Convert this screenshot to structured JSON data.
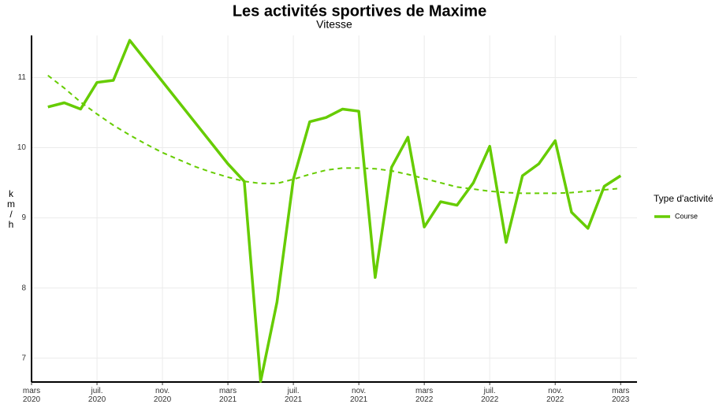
{
  "chart_data": {
    "type": "line",
    "title": "Les activités sportives de Maxime",
    "subtitle": "Vitesse",
    "y_label": "km/h",
    "legend_title": "Type d'activité",
    "legend_position": "right",
    "grid": true,
    "x": [
      "2020-04",
      "2020-05",
      "2020-06",
      "2020-07",
      "2020-08",
      "2020-09",
      "2021-03",
      "2021-04",
      "2021-05",
      "2021-06",
      "2021-07",
      "2021-08",
      "2021-09",
      "2021-10",
      "2021-11",
      "2021-12",
      "2022-01",
      "2022-02",
      "2022-03",
      "2022-04",
      "2022-05",
      "2022-06",
      "2022-07",
      "2022-08",
      "2022-09",
      "2022-10",
      "2022-11",
      "2022-12",
      "2023-01",
      "2023-02",
      "2023-03"
    ],
    "series": [
      {
        "name": "Course",
        "color": "#66cc00",
        "values": [
          10.58,
          10.64,
          10.55,
          10.93,
          10.96,
          11.53,
          9.77,
          9.52,
          6.67,
          7.8,
          9.55,
          10.37,
          10.43,
          10.55,
          10.52,
          8.15,
          9.72,
          10.15,
          8.87,
          9.23,
          9.18,
          9.5,
          10.02,
          8.65,
          9.6,
          9.77,
          10.1,
          9.08,
          8.85,
          9.45,
          9.6
        ]
      }
    ],
    "trend": {
      "color": "#66cc00",
      "x": [
        "2020-04",
        "2020-05",
        "2020-06",
        "2020-07",
        "2020-08",
        "2020-09",
        "2020-10",
        "2020-11",
        "2020-12",
        "2021-01",
        "2021-02",
        "2021-03",
        "2021-04",
        "2021-05",
        "2021-06",
        "2021-07",
        "2021-08",
        "2021-09",
        "2021-10",
        "2021-11",
        "2021-12",
        "2022-01",
        "2022-02",
        "2022-03",
        "2022-04",
        "2022-05",
        "2022-06",
        "2022-07",
        "2022-08",
        "2022-09",
        "2022-10",
        "2022-11",
        "2022-12",
        "2023-01",
        "2023-02",
        "2023-03"
      ],
      "values": [
        11.03,
        10.85,
        10.65,
        10.48,
        10.32,
        10.18,
        10.05,
        9.93,
        9.83,
        9.73,
        9.65,
        9.58,
        9.52,
        9.49,
        9.49,
        9.55,
        9.62,
        9.68,
        9.71,
        9.71,
        9.7,
        9.67,
        9.62,
        9.56,
        9.5,
        9.44,
        9.41,
        9.38,
        9.36,
        9.35,
        9.35,
        9.35,
        9.36,
        9.38,
        9.4,
        9.42
      ]
    },
    "xlim": [
      "2020-03",
      "2023-04"
    ],
    "xticks": [
      {
        "value": "2020-03",
        "label": "mars\n2020"
      },
      {
        "value": "2020-07",
        "label": "juil.\n2020"
      },
      {
        "value": "2020-11",
        "label": "nov.\n2020"
      },
      {
        "value": "2021-03",
        "label": "mars\n2021"
      },
      {
        "value": "2021-07",
        "label": "juil.\n2021"
      },
      {
        "value": "2021-11",
        "label": "nov.\n2021"
      },
      {
        "value": "2022-03",
        "label": "mars\n2022"
      },
      {
        "value": "2022-07",
        "label": "juil.\n2022"
      },
      {
        "value": "2022-11",
        "label": "nov.\n2022"
      },
      {
        "value": "2023-03",
        "label": "mars\n2023"
      }
    ],
    "ylim": [
      6.66,
      11.6
    ],
    "yticks": [
      7,
      8,
      9,
      10,
      11
    ]
  }
}
